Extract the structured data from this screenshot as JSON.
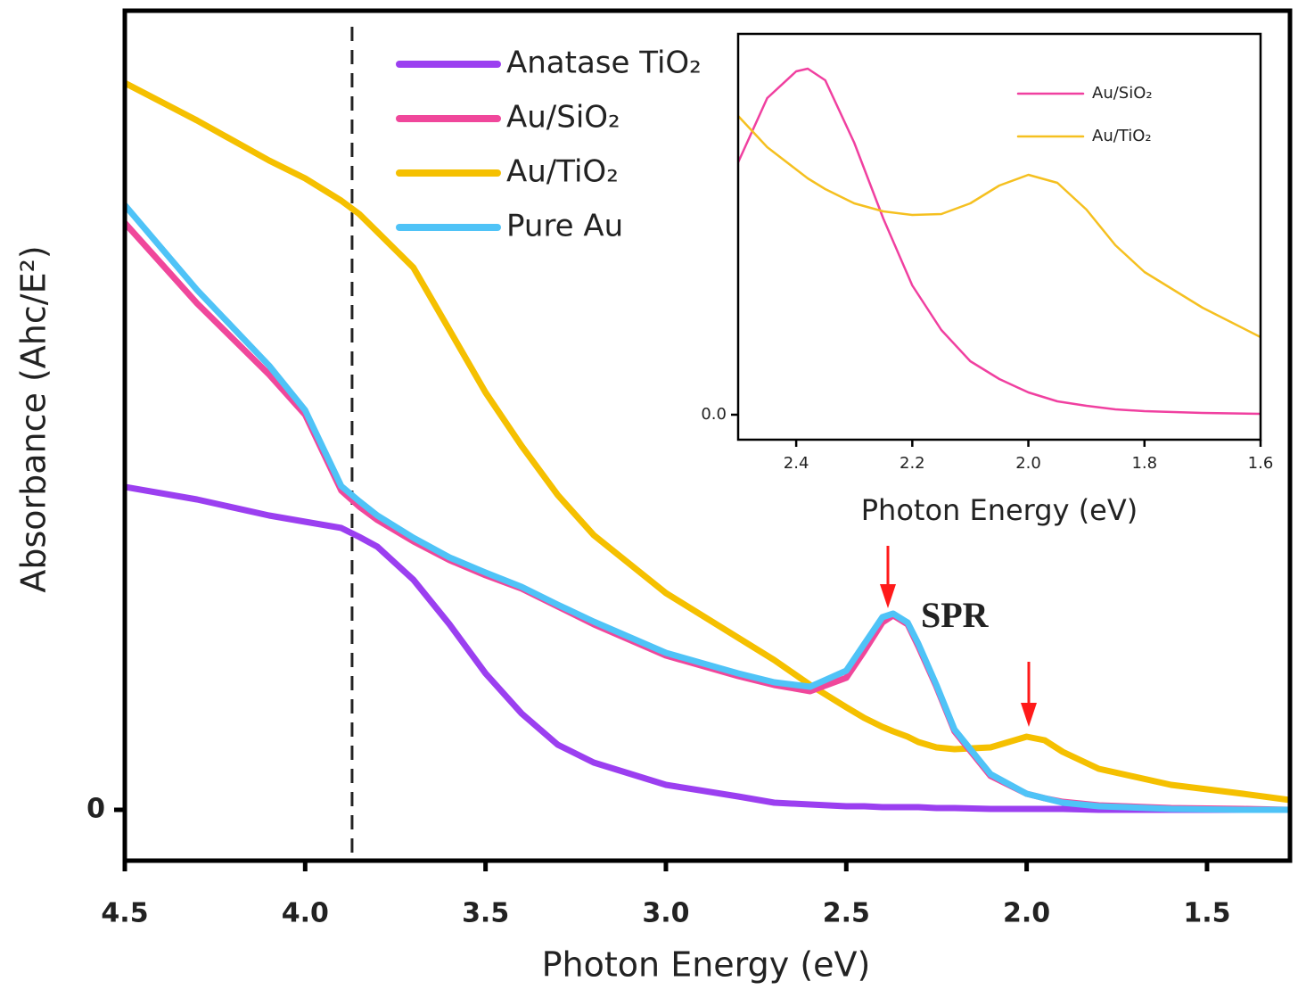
{
  "chart_data": [
    {
      "type": "line",
      "x_label": "Photon Energy (eV)",
      "y_label": "Absorbance (Ahc/E²)",
      "annotation": "SPR",
      "vline": 3.87,
      "xlim": [
        4.5,
        1.27
      ],
      "xticks": [
        4.5,
        {
          "value": 4,
          "label": "4.0"
        },
        3.5,
        {
          "value": 3,
          "label": "3.0"
        },
        2.5,
        {
          "value": 2,
          "label": "2.0"
        },
        1.5
      ],
      "ylim": [
        -0.57,
        8.96
      ],
      "yticks": [
        0
      ],
      "x": [
        4.5,
        4.3,
        4.1,
        4.0,
        3.9,
        3.85,
        3.8,
        3.7,
        3.6,
        3.5,
        3.4,
        3.3,
        3.2,
        3.0,
        2.8,
        2.7,
        2.6,
        2.5,
        2.45,
        2.4,
        2.37,
        2.33,
        2.3,
        2.25,
        2.2,
        2.1,
        2.0,
        1.95,
        1.9,
        1.8,
        1.6,
        1.4,
        1.27
      ],
      "series": [
        {
          "name": "Anatase TiO₂",
          "color": "#9b3ff0",
          "values": [
            3.62,
            3.48,
            3.3,
            3.23,
            3.16,
            3.06,
            2.95,
            2.58,
            2.08,
            1.53,
            1.08,
            0.73,
            0.53,
            0.28,
            0.15,
            0.08,
            0.06,
            0.04,
            0.04,
            0.03,
            0.03,
            0.03,
            0.03,
            0.02,
            0.02,
            0.01,
            0.01,
            0.01,
            0.01,
            0,
            0,
            0,
            0
          ]
        },
        {
          "name": "Au/SiO₂",
          "color": "#f0479b",
          "values": [
            6.58,
            5.68,
            4.88,
            4.43,
            3.58,
            3.4,
            3.25,
            3.01,
            2.8,
            2.63,
            2.48,
            2.28,
            2.08,
            1.73,
            1.5,
            1.4,
            1.33,
            1.48,
            1.78,
            2.1,
            2.18,
            2.08,
            1.83,
            1.38,
            0.88,
            0.38,
            0.18,
            0.13,
            0.09,
            0.05,
            0.02,
            0.01,
            0
          ]
        },
        {
          "name": "Au/TiO₂",
          "color": "#f5c000",
          "values": [
            8.15,
            7.73,
            7.28,
            7.08,
            6.83,
            6.68,
            6.48,
            6.08,
            5.38,
            4.68,
            4.08,
            3.53,
            3.08,
            2.43,
            1.93,
            1.68,
            1.4,
            1.15,
            1.03,
            0.93,
            0.88,
            0.82,
            0.76,
            0.7,
            0.68,
            0.7,
            0.82,
            0.78,
            0.65,
            0.46,
            0.28,
            0.18,
            0.11
          ]
        },
        {
          "name": "Pure Au",
          "color": "#4fc3f7",
          "values": [
            6.78,
            5.83,
            4.98,
            4.48,
            3.63,
            3.46,
            3.3,
            3.05,
            2.83,
            2.66,
            2.5,
            2.3,
            2.11,
            1.76,
            1.53,
            1.43,
            1.38,
            1.56,
            1.86,
            2.16,
            2.2,
            2.1,
            1.86,
            1.4,
            0.9,
            0.4,
            0.18,
            0.13,
            0.08,
            0.04,
            0.01,
            0,
            0
          ]
        }
      ]
    },
    {
      "type": "line",
      "x_label": "Photon Energy (eV)",
      "xlim": [
        2.5,
        1.6
      ],
      "xticks": [
        2.4,
        2.2,
        {
          "value": 2,
          "label": "2.0"
        },
        1.8,
        1.6
      ],
      "ylim": [
        -0.28,
        4.27
      ],
      "yticks": [
        {
          "value": 0,
          "label": "0.0"
        }
      ],
      "x": [
        2.5,
        2.45,
        2.4,
        2.38,
        2.35,
        2.3,
        2.25,
        2.2,
        2.15,
        2.1,
        2.05,
        2.0,
        1.95,
        1.9,
        1.85,
        1.8,
        1.7,
        1.6
      ],
      "series": [
        {
          "name": "Au/SiO₂",
          "color": "#f040a0",
          "values": [
            2.83,
            3.55,
            3.85,
            3.88,
            3.75,
            3.05,
            2.2,
            1.45,
            0.95,
            0.6,
            0.4,
            0.25,
            0.15,
            0.1,
            0.06,
            0.04,
            0.02,
            0.01
          ]
        },
        {
          "name": "Au/TiO₂",
          "color": "#f5c020",
          "values": [
            3.35,
            3.0,
            2.75,
            2.65,
            2.53,
            2.37,
            2.28,
            2.24,
            2.25,
            2.37,
            2.57,
            2.69,
            2.6,
            2.3,
            1.9,
            1.6,
            1.2,
            0.87
          ]
        }
      ]
    }
  ]
}
